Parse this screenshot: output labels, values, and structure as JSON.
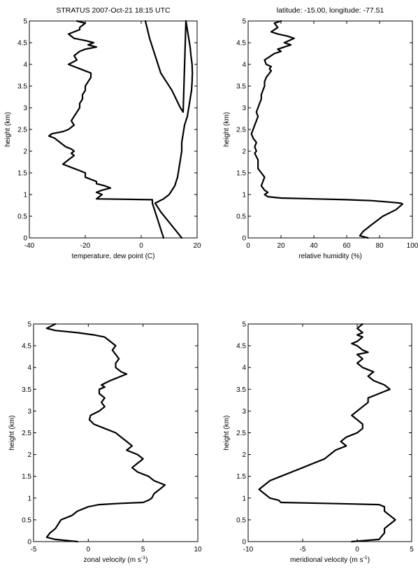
{
  "chart_data": [
    {
      "type": "line",
      "title": "STRATUS 2007-Oct-21 18:15 UTC",
      "xlabel": "temperature, dew point (C)",
      "ylabel": "height (km)",
      "xlim": [
        -40,
        20
      ],
      "ylim": [
        0,
        5
      ],
      "xticks": [
        "-40",
        "-20",
        "0",
        "20"
      ],
      "xtick_values": [
        -40,
        -20,
        0,
        20
      ],
      "yticks": [
        "0",
        "0.5",
        "1",
        "1.5",
        "2",
        "2.5",
        "3",
        "3.5",
        "4",
        "4.5",
        "5"
      ],
      "grid": false,
      "series": [
        {
          "color": "#000000",
          "x": [
            14.5,
            12,
            9.5,
            7,
            5,
            8,
            10,
            12,
            13,
            13.5,
            14,
            14.5,
            14.5,
            15,
            15.5,
            16.5,
            17,
            17.5,
            18,
            18.2,
            18.3,
            18.2,
            17.8,
            17.5,
            17,
            16.5,
            16,
            15,
            14,
            12.5,
            11,
            9,
            7,
            5,
            3,
            1.5
          ],
          "y": [
            0.0,
            0.2,
            0.4,
            0.6,
            0.8,
            0.9,
            1.0,
            1.2,
            1.4,
            1.6,
            1.8,
            2.0,
            2.2,
            2.4,
            2.6,
            2.8,
            3.0,
            3.2,
            3.4,
            3.6,
            3.8,
            4.0,
            4.2,
            4.4,
            4.6,
            4.8,
            5.0,
            2.9,
            3.0,
            3.2,
            3.4,
            3.6,
            3.8,
            4.2,
            4.6,
            5.0
          ]
        },
        {
          "color": "#000000",
          "x": [
            8,
            7,
            6,
            5,
            4,
            4,
            -16,
            -15,
            -14,
            -16,
            -14,
            -11,
            -13,
            -16,
            -16,
            -20,
            -20,
            -22,
            -24,
            -28,
            -26,
            -24,
            -25,
            -24,
            -25,
            -27,
            -29,
            -31,
            -33,
            -32,
            -28,
            -26,
            -24,
            -25,
            -24,
            -23,
            -22,
            -22,
            -21,
            -21,
            -20,
            -20,
            -19,
            -18,
            -18,
            -20,
            -22,
            -24,
            -26,
            -23,
            -24,
            -22,
            -20,
            -16,
            -19,
            -17,
            -20,
            -24,
            -26,
            -22,
            -22,
            -20,
            -23
          ],
          "y": [
            0.0,
            0.2,
            0.4,
            0.6,
            0.8,
            0.88,
            0.9,
            0.95,
            1.0,
            1.05,
            1.1,
            1.15,
            1.2,
            1.25,
            1.3,
            1.4,
            1.5,
            1.55,
            1.6,
            1.7,
            1.8,
            1.9,
            1.95,
            2.0,
            2.05,
            2.1,
            2.2,
            2.3,
            2.35,
            2.4,
            2.45,
            2.5,
            2.6,
            2.7,
            2.8,
            2.9,
            3.0,
            3.1,
            3.2,
            3.3,
            3.4,
            3.5,
            3.6,
            3.7,
            3.8,
            3.85,
            3.9,
            3.95,
            4.0,
            4.1,
            4.2,
            4.3,
            4.35,
            4.4,
            4.45,
            4.5,
            4.55,
            4.6,
            4.7,
            4.8,
            4.85,
            4.95,
            5.0
          ]
        }
      ]
    },
    {
      "type": "line",
      "title": "latitude: -15.00, longitude: -77.51",
      "xlabel": "relative humidity (%)",
      "ylabel": "height (km)",
      "xlim": [
        0,
        100
      ],
      "ylim": [
        0,
        5
      ],
      "xticks": [
        "0",
        "20",
        "40",
        "60",
        "80",
        "100"
      ],
      "xtick_values": [
        0,
        20,
        40,
        60,
        80,
        100
      ],
      "yticks": [
        "0",
        "0.5",
        "1",
        "1.5",
        "2",
        "2.5",
        "3",
        "3.5",
        "4",
        "4.5",
        "5"
      ],
      "grid": false,
      "series": [
        {
          "color": "#000000",
          "x": [
            73,
            68,
            70,
            75,
            82,
            90,
            94,
            93,
            88,
            75,
            60,
            40,
            20,
            12,
            10,
            12,
            10,
            8,
            10,
            8,
            6,
            6,
            4,
            5,
            4,
            5,
            3,
            2,
            3,
            4,
            5,
            6,
            5,
            6,
            7,
            8,
            8,
            9,
            10,
            10,
            11,
            13,
            14,
            13,
            14,
            11,
            10,
            14,
            16,
            20,
            18,
            22,
            26,
            22,
            25,
            28,
            24,
            18,
            14,
            18,
            16,
            20
          ],
          "y": [
            0.0,
            0.05,
            0.15,
            0.3,
            0.5,
            0.65,
            0.78,
            0.8,
            0.82,
            0.86,
            0.88,
            0.9,
            0.92,
            0.95,
            1.0,
            1.05,
            1.1,
            1.2,
            1.4,
            1.5,
            1.6,
            1.8,
            1.95,
            2.0,
            2.1,
            2.2,
            2.3,
            2.4,
            2.5,
            2.6,
            2.7,
            2.8,
            2.9,
            3.0,
            3.1,
            3.2,
            3.3,
            3.4,
            3.5,
            3.6,
            3.7,
            3.8,
            3.85,
            3.9,
            3.95,
            4.0,
            4.1,
            4.2,
            4.25,
            4.3,
            4.35,
            4.4,
            4.45,
            4.5,
            4.55,
            4.6,
            4.65,
            4.7,
            4.75,
            4.85,
            4.95,
            5.0
          ]
        }
      ]
    },
    {
      "type": "line",
      "title": "",
      "xlabel": "zonal velocity (m s-1)",
      "ylabel": "height (km)",
      "xlim": [
        -5,
        10
      ],
      "ylim": [
        0,
        5
      ],
      "xticks": [
        "-5",
        "0",
        "5",
        "10"
      ],
      "xtick_values": [
        -5,
        0,
        5,
        10
      ],
      "yticks": [
        "0",
        "0.5",
        "1",
        "1.5",
        "2",
        "2.5",
        "3",
        "3.5",
        "4",
        "4.5",
        "5"
      ],
      "grid": false,
      "series": [
        {
          "color": "#000000",
          "x": [
            -1,
            -3,
            -3.8,
            -3.5,
            -3,
            -2.5,
            -1.5,
            -1,
            0,
            1,
            3,
            5,
            5.5,
            5.8,
            6,
            6.5,
            7,
            6,
            5.5,
            5,
            4.5,
            4,
            4.5,
            5,
            4.5,
            4,
            3.5,
            4,
            3.5,
            3,
            2.5,
            2,
            1.5,
            0.5,
            0.1,
            0.2,
            1,
            1.5,
            1.2,
            1.5,
            1,
            1,
            1.5,
            1.2,
            2,
            2.5,
            3,
            3.5,
            3,
            2.5,
            2.5,
            2.8,
            2.5,
            2.2,
            2.5,
            2,
            1.5,
            0.5,
            -1,
            -3,
            -3.8,
            -3
          ],
          "y": [
            0.0,
            0.05,
            0.1,
            0.2,
            0.3,
            0.5,
            0.6,
            0.7,
            0.8,
            0.85,
            0.88,
            0.9,
            0.95,
            1.0,
            1.1,
            1.2,
            1.3,
            1.4,
            1.5,
            1.55,
            1.6,
            1.7,
            1.8,
            1.9,
            2.0,
            2.05,
            2.1,
            2.2,
            2.3,
            2.4,
            2.5,
            2.55,
            2.6,
            2.7,
            2.8,
            2.9,
            3.0,
            3.1,
            3.2,
            3.3,
            3.4,
            3.5,
            3.55,
            3.6,
            3.7,
            3.75,
            3.8,
            3.85,
            3.9,
            4.0,
            4.1,
            4.2,
            4.3,
            4.4,
            4.5,
            4.6,
            4.7,
            4.75,
            4.8,
            4.85,
            4.9,
            5.0
          ]
        }
      ]
    },
    {
      "type": "line",
      "title": "",
      "xlabel": "meridional velocity (m s-1)",
      "ylabel": "height (km)",
      "xlim": [
        -10,
        5
      ],
      "ylim": [
        0,
        5
      ],
      "xticks": [
        "-10",
        "-5",
        "0",
        "5"
      ],
      "xtick_values": [
        -10,
        -5,
        0,
        5
      ],
      "yticks": [
        "0",
        "0.5",
        "1",
        "1.5",
        "2",
        "2.5",
        "3",
        "3.5",
        "4",
        "4.5",
        "5"
      ],
      "grid": false,
      "series": [
        {
          "color": "#000000",
          "x": [
            -0.5,
            2,
            2.5,
            2.5,
            3,
            3.5,
            3,
            2.5,
            2.5,
            2,
            -3,
            -7,
            -7.2,
            -8,
            -8.5,
            -9,
            -8.5,
            -8,
            -7,
            -6,
            -5,
            -4,
            -3,
            -2.5,
            -2,
            -1,
            -1.5,
            -1,
            0,
            0.5,
            0.5,
            0,
            -0.5,
            0,
            0.5,
            1,
            1,
            1.5,
            2.5,
            3,
            2.5,
            1.5,
            1,
            1.5,
            0.5,
            0,
            0.5,
            0,
            1,
            0.5,
            0,
            -0.5,
            0,
            0.5,
            0,
            0.5,
            0,
            0.5
          ],
          "y": [
            0.0,
            0.05,
            0.2,
            0.3,
            0.4,
            0.5,
            0.6,
            0.7,
            0.8,
            0.85,
            0.88,
            0.9,
            0.95,
            1.0,
            1.1,
            1.2,
            1.3,
            1.4,
            1.5,
            1.6,
            1.7,
            1.8,
            1.9,
            2.0,
            2.1,
            2.2,
            2.3,
            2.4,
            2.5,
            2.6,
            2.7,
            2.8,
            2.9,
            3.0,
            3.1,
            3.2,
            3.3,
            3.35,
            3.45,
            3.5,
            3.6,
            3.7,
            3.8,
            3.9,
            4.0,
            4.1,
            4.2,
            4.3,
            4.35,
            4.4,
            4.5,
            4.55,
            4.6,
            4.7,
            4.75,
            4.8,
            4.9,
            5.0
          ]
        }
      ]
    }
  ]
}
